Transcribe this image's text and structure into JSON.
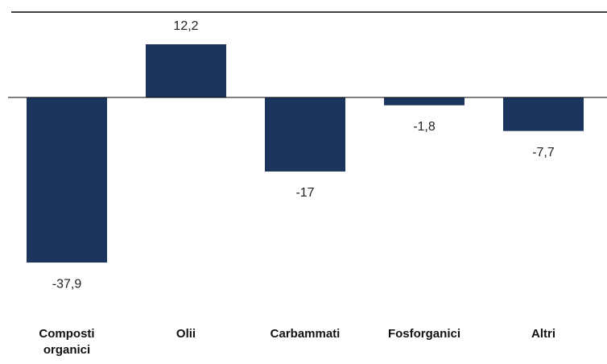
{
  "chart_data": {
    "type": "bar",
    "categories": [
      "Composti organici",
      "Olii",
      "Carbammati",
      "Fosforganici",
      "Altri"
    ],
    "values": [
      -37.9,
      12.2,
      -17,
      -1.8,
      -7.7
    ],
    "value_labels": [
      "-37,9",
      "12,2",
      "-17",
      "-1,8",
      "-7,7"
    ],
    "color": "#1b355c"
  }
}
